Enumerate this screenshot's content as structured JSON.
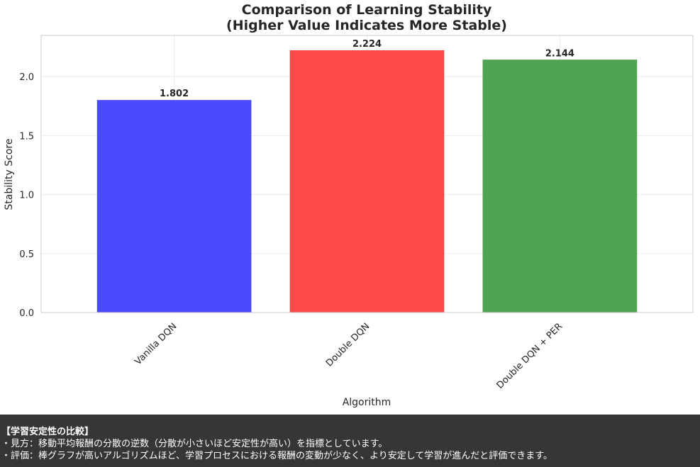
{
  "chart_data": {
    "type": "bar",
    "title_line1": "Comparison of Learning Stability",
    "title_line2": "(Higher Value Indicates More Stable)",
    "xlabel": "Algorithm",
    "ylabel": "Stability Score",
    "categories": [
      "Vanilla DQN",
      "Double DQN",
      "Double DQN + PER"
    ],
    "values": [
      1.802,
      2.224,
      2.144
    ],
    "value_labels": [
      "1.802",
      "2.224",
      "2.144"
    ],
    "colors": [
      "#4444ff",
      "#ff4444",
      "#4aa04a"
    ],
    "ylim": [
      0,
      2.35
    ],
    "yticks": [
      0.0,
      0.5,
      1.0,
      1.5,
      2.0
    ],
    "ytick_labels": [
      "0.0",
      "0.5",
      "1.0",
      "1.5",
      "2.0"
    ],
    "grid": true,
    "xtick_rotation_deg": 45
  },
  "footer": {
    "heading": "【学習安定性の比較】",
    "line1": "・見方：移動平均報酬の分散の逆数（分散が小さいほど安定性が高い）を指標としています。",
    "line2": "・評価：棒グラフが高いアルゴリズムほど、学習プロセスにおける報酬の変動が少なく、より安定して学習が進んだと評価できます。"
  }
}
